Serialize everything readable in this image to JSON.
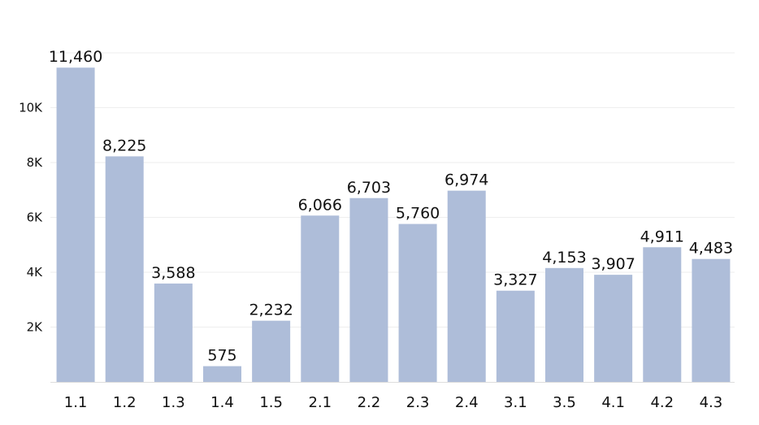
{
  "chart_data": {
    "type": "bar",
    "categories": [
      "1.1",
      "1.2",
      "1.3",
      "1.4",
      "1.5",
      "2.1",
      "2.2",
      "2.3",
      "2.4",
      "3.1",
      "3.5",
      "4.1",
      "4.2",
      "4.3"
    ],
    "values": [
      11460,
      8225,
      3588,
      575,
      2232,
      6066,
      6703,
      5760,
      6974,
      3327,
      4153,
      3907,
      4911,
      4483
    ],
    "value_labels": [
      "11,460",
      "8,225",
      "3,588",
      "575",
      "2,232",
      "6,066",
      "6,703",
      "5,760",
      "6,974",
      "3,327",
      "4,153",
      "3,907",
      "4,911",
      "4,483"
    ],
    "y_ticks": [
      2000,
      4000,
      6000,
      8000,
      10000
    ],
    "y_tick_labels": [
      "2K",
      "4K",
      "6K",
      "8K",
      "10K"
    ],
    "ylim": [
      0,
      12000
    ],
    "grid": true,
    "bar_color": "#aebdd9",
    "grid_color": "#eeeeee",
    "axis_color": "#dddddd"
  }
}
